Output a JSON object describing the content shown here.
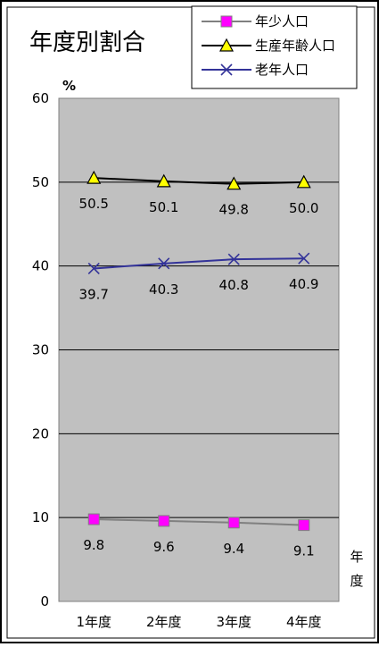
{
  "chart_data": {
    "type": "line",
    "title": "年度別割合",
    "ylabel": "%",
    "xlabel": "年度",
    "ylim": [
      0,
      60
    ],
    "yticks": [
      0,
      10,
      20,
      30,
      40,
      50,
      60
    ],
    "categories": [
      "1年度",
      "2年度",
      "3年度",
      "4年度"
    ],
    "grid": true,
    "legend_position": "top-right",
    "series": [
      {
        "name": "年少人口",
        "values": [
          9.8,
          9.6,
          9.4,
          9.1
        ],
        "labels": [
          "9.8",
          "9.6",
          "9.4",
          "9.1"
        ],
        "color": "#808080",
        "marker": "square",
        "marker_color": "#ff00ff"
      },
      {
        "name": "生産年齢人口",
        "values": [
          50.5,
          50.1,
          49.8,
          50.0
        ],
        "labels": [
          "50.5",
          "50.1",
          "49.8",
          "50.0"
        ],
        "color": "#000000",
        "marker": "triangle",
        "marker_color": "#ffff00"
      },
      {
        "name": "老年人口",
        "values": [
          39.7,
          40.3,
          40.8,
          40.9
        ],
        "labels": [
          "39.7",
          "40.3",
          "40.8",
          "40.9"
        ],
        "color": "#333399",
        "marker": "x",
        "marker_color": "#333399"
      }
    ],
    "plot_bg": "#c0c0c0"
  }
}
